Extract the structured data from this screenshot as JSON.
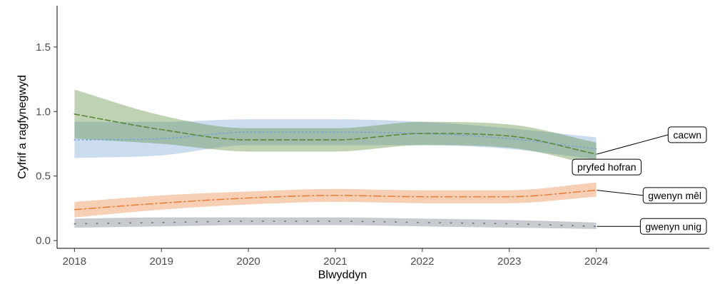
{
  "chart_data": {
    "type": "line",
    "title": "",
    "xlabel": "Blwyddyn",
    "ylabel": "Cyfrif a ragfynegwyd",
    "x": [
      2018,
      2019,
      2020,
      2021,
      2022,
      2023,
      2024
    ],
    "x_ticks": [
      "2018",
      "2019",
      "2020",
      "2021",
      "2022",
      "2023",
      "2024"
    ],
    "y_ticks": [
      "0.0",
      "0.5",
      "1.0",
      "1.5"
    ],
    "xlim": [
      2017.8,
      2025.3
    ],
    "ylim": [
      -0.06,
      1.82
    ],
    "grid": false,
    "legend": "direct labels at right",
    "series": [
      {
        "name": "pryfed hofran",
        "color": "#7aa2d6",
        "dash": "dotted",
        "values": [
          0.78,
          0.79,
          0.84,
          0.84,
          0.83,
          0.79,
          0.71
        ],
        "lower": [
          0.64,
          0.66,
          0.74,
          0.74,
          0.74,
          0.71,
          0.63
        ],
        "upper": [
          0.92,
          0.92,
          0.94,
          0.94,
          0.92,
          0.87,
          0.8
        ]
      },
      {
        "name": "cacwn",
        "color": "#5a8a3a",
        "dash": "dashed",
        "values": [
          0.98,
          0.86,
          0.78,
          0.78,
          0.83,
          0.81,
          0.67
        ],
        "lower": [
          0.79,
          0.75,
          0.69,
          0.69,
          0.74,
          0.72,
          0.58
        ],
        "upper": [
          1.17,
          0.97,
          0.87,
          0.87,
          0.92,
          0.9,
          0.76
        ]
      },
      {
        "name": "gwenyn mêl",
        "color": "#e8823c",
        "dash": "dashdot",
        "values": [
          0.24,
          0.29,
          0.33,
          0.35,
          0.34,
          0.34,
          0.39
        ],
        "lower": [
          0.18,
          0.24,
          0.28,
          0.3,
          0.29,
          0.29,
          0.34
        ],
        "upper": [
          0.3,
          0.35,
          0.38,
          0.4,
          0.39,
          0.39,
          0.45
        ]
      },
      {
        "name": "gwenyn unig",
        "color": "#6b7680",
        "dash": "sparse-dotted",
        "values": [
          0.13,
          0.14,
          0.15,
          0.15,
          0.14,
          0.13,
          0.11
        ],
        "lower": [
          0.1,
          0.11,
          0.12,
          0.12,
          0.11,
          0.1,
          0.09
        ],
        "upper": [
          0.17,
          0.18,
          0.18,
          0.18,
          0.17,
          0.16,
          0.14
        ]
      }
    ],
    "labels": [
      {
        "text": "cacwn",
        "series": "cacwn",
        "label_y": 0.82
      },
      {
        "text": "pryfed hofran",
        "series": "pryfed hofran",
        "label_y": 0.57
      },
      {
        "text": "gwenyn mêl",
        "series": "gwenyn mêl",
        "label_y": 0.35
      },
      {
        "text": "gwenyn unig",
        "series": "gwenyn unig",
        "label_y": 0.11
      }
    ]
  }
}
